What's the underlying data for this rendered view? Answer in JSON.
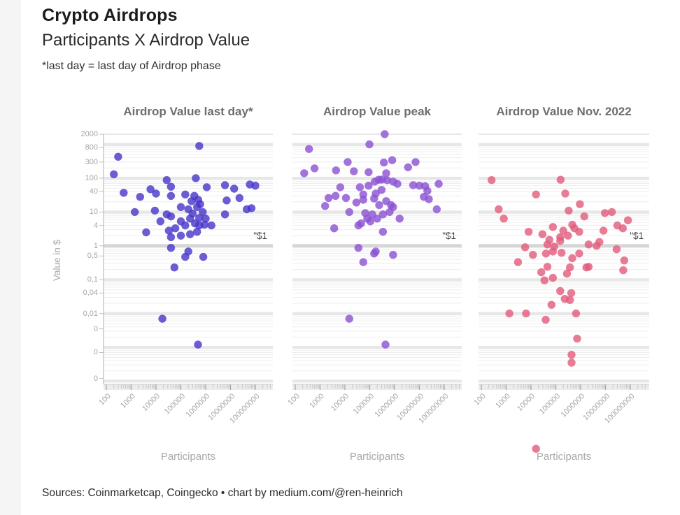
{
  "page": {
    "header": {
      "title": "Crypto Airdrops",
      "subtitle": "Participants X Airdrop Value",
      "note": "*last day = last day of Airdrop phase"
    },
    "footer": "Sources: Coinmarketcap, Coingecko • chart by medium.com/@ren-heinrich"
  },
  "chart_data": {
    "type": "scatter",
    "layout": "three small-multiple scatter panels sharing one log y-axis",
    "x_scale": "log",
    "y_scale": "log",
    "xlabel": "Participants",
    "ylabel": "Value in $",
    "annotation": "\"$1",
    "annotation_value": 1,
    "grid": true,
    "x_range": [
      100,
      100000000
    ],
    "y_range": [
      0.0001,
      2000
    ],
    "x_ticks": [
      {
        "label": "100",
        "value": 100
      },
      {
        "label": "1000",
        "value": 1000
      },
      {
        "label": "10000",
        "value": 10000
      },
      {
        "label": "100000",
        "value": 100000
      },
      {
        "label": "1000000",
        "value": 1000000
      },
      {
        "label": "10000000",
        "value": 10000000
      },
      {
        "label": "100000000",
        "value": 100000000
      }
    ],
    "y_ticks": [
      {
        "label": "2000",
        "value": 2000
      },
      {
        "label": "800",
        "value": 800
      },
      {
        "label": "300",
        "value": 300
      },
      {
        "label": "100",
        "value": 100
      },
      {
        "label": "40",
        "value": 40
      },
      {
        "label": "10",
        "value": 10
      },
      {
        "label": "4",
        "value": 4
      },
      {
        "label": "1",
        "value": 1
      },
      {
        "label": "0,5",
        "value": 0.5
      },
      {
        "label": "0,1",
        "value": 0.1
      },
      {
        "label": "0,04",
        "value": 0.04
      },
      {
        "label": "0,01",
        "value": 0.01
      },
      {
        "label": "0",
        "value": 0.0035
      },
      {
        "label": "0",
        "value": 0.0007
      },
      {
        "label": "0",
        "value": 0.00012
      }
    ],
    "panels": [
      {
        "title": "Airdrop Value last day*",
        "color": "#4634c8",
        "points": [
          [
            550000,
            900
          ],
          [
            300,
            430
          ],
          [
            200,
            130
          ],
          [
            400000,
            100
          ],
          [
            27000,
            88
          ],
          [
            40000,
            56
          ],
          [
            60000000,
            65
          ],
          [
            6000000,
            62
          ],
          [
            14000000,
            49
          ],
          [
            1100000,
            54
          ],
          [
            500,
            37
          ],
          [
            6000,
            47
          ],
          [
            10000,
            35
          ],
          [
            2300,
            28
          ],
          [
            7000000,
            22
          ],
          [
            23000000,
            26
          ],
          [
            70000000,
            13
          ],
          [
            6000000,
            8.5
          ],
          [
            40000,
            30
          ],
          [
            150000,
            33
          ],
          [
            270000,
            21
          ],
          [
            600000,
            17
          ],
          [
            100000,
            14
          ],
          [
            1400,
            10
          ],
          [
            9000,
            11
          ],
          [
            27000,
            8.5
          ],
          [
            450000,
            14
          ],
          [
            760000,
            10
          ],
          [
            40000,
            7.4
          ],
          [
            100000,
            5.3
          ],
          [
            235000,
            6.4
          ],
          [
            550000,
            6.7
          ],
          [
            1000000,
            6.4
          ],
          [
            370000,
            4.6
          ],
          [
            150000,
            4
          ],
          [
            60000,
            3.3
          ],
          [
            33000,
            2.8
          ],
          [
            15000,
            5.3
          ],
          [
            4000,
            2.5
          ],
          [
            550000,
            4
          ],
          [
            900000,
            4.2
          ],
          [
            450000,
            2.6
          ],
          [
            235000,
            2.2
          ],
          [
            100000,
            2
          ],
          [
            40000,
            1.8
          ],
          [
            1700000,
            4
          ],
          [
            45000000,
            12
          ],
          [
            100000000,
            60
          ],
          [
            300000,
            9
          ],
          [
            200000,
            12
          ],
          [
            500000,
            23
          ],
          [
            350000,
            30
          ],
          [
            40000,
            0.87
          ],
          [
            200000,
            0.68
          ],
          [
            150000,
            0.47
          ],
          [
            800000,
            0.47
          ],
          [
            55000,
            0.23
          ],
          [
            18000,
            0.007
          ],
          [
            490000,
            0.0012
          ]
        ]
      },
      {
        "title": "Airdrop Value peak",
        "color": "#8b51d2",
        "points": [
          [
            400000,
            2000
          ],
          [
            97000,
            1000
          ],
          [
            360,
            730
          ],
          [
            800000,
            340
          ],
          [
            370000,
            290
          ],
          [
            7000000,
            300
          ],
          [
            13000,
            300
          ],
          [
            600,
            195
          ],
          [
            230,
            140
          ],
          [
            4400,
            170
          ],
          [
            23000,
            160
          ],
          [
            90000,
            150
          ],
          [
            3500000,
            210
          ],
          [
            60000000,
            68
          ],
          [
            21000000,
            42
          ],
          [
            5600000,
            62
          ],
          [
            10000000,
            60
          ],
          [
            17000000,
            58
          ],
          [
            460000,
            140
          ],
          [
            310000,
            91
          ],
          [
            500000,
            87
          ],
          [
            160000,
            79
          ],
          [
            870000,
            79
          ],
          [
            1300000,
            68
          ],
          [
            6500,
            54
          ],
          [
            40000,
            54
          ],
          [
            2200,
            26
          ],
          [
            1600,
            15
          ],
          [
            4200,
            30
          ],
          [
            11000,
            26
          ],
          [
            55000,
            33
          ],
          [
            175000,
            35
          ],
          [
            55000,
            23
          ],
          [
            29000,
            19
          ],
          [
            15000,
            10
          ],
          [
            66000,
            9.3
          ],
          [
            126000,
            8.5
          ],
          [
            240000,
            16
          ],
          [
            460000,
            21
          ],
          [
            720000,
            16
          ],
          [
            870000,
            14
          ],
          [
            630000,
            10
          ],
          [
            340000,
            8.5
          ],
          [
            200000,
            6.4
          ],
          [
            105000,
            5.3
          ],
          [
            79000,
            6.4
          ],
          [
            45000,
            4.6
          ],
          [
            35000,
            4
          ],
          [
            1600000,
            6.4
          ],
          [
            3700,
            3.3
          ],
          [
            340000,
            2.6
          ],
          [
            15000000,
            28
          ],
          [
            24000000,
            24
          ],
          [
            50000000,
            12
          ],
          [
            230000,
            90
          ],
          [
            300000,
            45
          ],
          [
            150000,
            25
          ],
          [
            90000,
            60
          ],
          [
            35000,
            0.87
          ],
          [
            150000,
            0.59
          ],
          [
            175000,
            0.68
          ],
          [
            55000,
            0.33
          ],
          [
            870000,
            0.54
          ],
          [
            15000,
            0.007
          ],
          [
            430000,
            0.0012
          ]
        ]
      },
      {
        "title": "Airdrop Value Nov. 2022",
        "color": "#e25b7c",
        "points": [
          [
            260,
            88
          ],
          [
            155000,
            90
          ],
          [
            240000,
            35
          ],
          [
            16000,
            33
          ],
          [
            500,
            12
          ],
          [
            800,
            6.4
          ],
          [
            930000,
            17
          ],
          [
            330000,
            11
          ],
          [
            1400000,
            7.4
          ],
          [
            9500000,
            9.3
          ],
          [
            18000000,
            10
          ],
          [
            80000000,
            5.7
          ],
          [
            30000000,
            4
          ],
          [
            8300000,
            2.8
          ],
          [
            50000000,
            3.3
          ],
          [
            8000,
            2.6
          ],
          [
            29000,
            2.2
          ],
          [
            76000,
            3.6
          ],
          [
            200000,
            2.8
          ],
          [
            460000,
            4.2
          ],
          [
            560000,
            3.3
          ],
          [
            870000,
            2.6
          ],
          [
            310000,
            2
          ],
          [
            150000,
            1.8
          ],
          [
            55000,
            1.5
          ],
          [
            46000,
            1.1
          ],
          [
            2100000,
            1.1
          ],
          [
            5700000,
            1.3
          ],
          [
            5800,
            0.91
          ],
          [
            86000,
            0.95
          ],
          [
            150000,
            1.4
          ],
          [
            12000,
            0.54
          ],
          [
            3000,
            0.33
          ],
          [
            40000,
            0.59
          ],
          [
            76000,
            0.68
          ],
          [
            170000,
            0.62
          ],
          [
            870000,
            0.59
          ],
          [
            4400000,
            1.0
          ],
          [
            28000000,
            0.79
          ],
          [
            57000000,
            0.37
          ],
          [
            52000000,
            0.19
          ],
          [
            1700000,
            0.23
          ],
          [
            46000,
            0.24
          ],
          [
            26000,
            0.165
          ],
          [
            76000,
            0.113
          ],
          [
            35000,
            0.095
          ],
          [
            280000,
            0.15
          ],
          [
            370000,
            0.23
          ],
          [
            460000,
            0.43
          ],
          [
            2100000,
            0.24
          ],
          [
            150000,
            0.046
          ],
          [
            230000,
            0.027
          ],
          [
            67000,
            0.018
          ],
          [
            370000,
            0.025
          ],
          [
            420000,
            0.04
          ],
          [
            1350,
            0.01
          ],
          [
            6300,
            0.01
          ],
          [
            39000,
            0.0065
          ],
          [
            650000,
            0.01
          ],
          [
            720000,
            0.0018
          ],
          [
            430000,
            0.0006
          ],
          [
            430000,
            0.00035
          ],
          [
            16000,
            1e-06
          ]
        ]
      }
    ]
  }
}
